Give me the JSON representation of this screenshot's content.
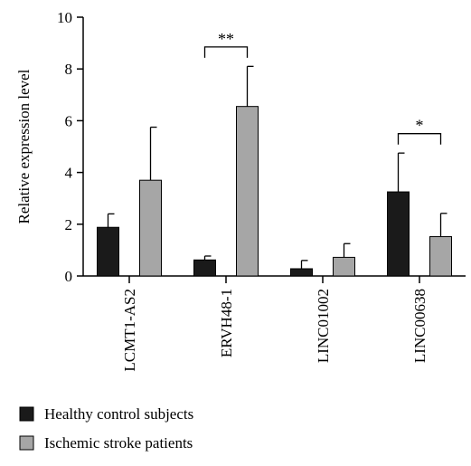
{
  "chart_data": {
    "type": "bar",
    "ylabel": "Relative expression level",
    "xlabel": "",
    "ylim": [
      0,
      10
    ],
    "yticks": [
      0,
      2,
      4,
      6,
      8,
      10
    ],
    "categories": [
      "LCMT1-AS2",
      "ERVH48-1",
      "LINC01002",
      "LINC00638"
    ],
    "series": [
      {
        "name": "Healthy control subjects",
        "color": "#1a1a1a",
        "values": [
          1.88,
          0.62,
          0.28,
          3.25
        ],
        "errors": [
          0.52,
          0.15,
          0.32,
          1.5
        ]
      },
      {
        "name": "Ischemic stroke patients",
        "color": "#a6a6a6",
        "values": [
          3.7,
          6.55,
          0.72,
          1.52
        ],
        "errors": [
          2.05,
          1.55,
          0.53,
          0.9
        ]
      }
    ],
    "significance": [
      {
        "category": "ERVH48-1",
        "label": "**",
        "y": 8.85
      },
      {
        "category": "LINC00638",
        "label": "*",
        "y": 5.5
      }
    ],
    "legend_position": "bottom-left",
    "grid": false
  }
}
